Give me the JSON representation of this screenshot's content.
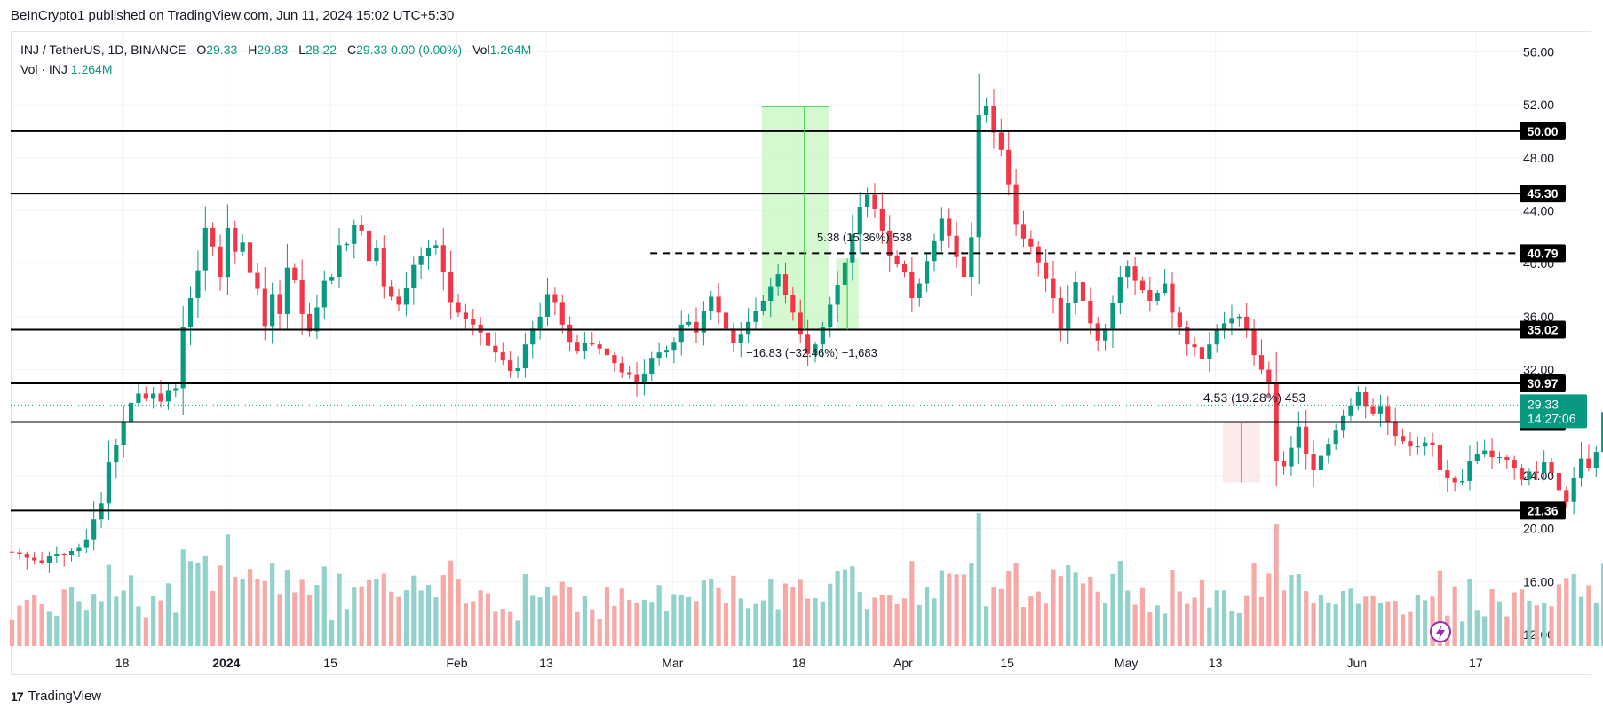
{
  "publisher": "BeInCrypto1 published on TradingView.com, Jun 11, 2024 15:02 UTC+5:30",
  "legend": {
    "symbol": "INJ / TetherUS, 1D, BINANCE",
    "o_label": "O",
    "o": "29.33",
    "h_label": "H",
    "h": "29.83",
    "l_label": "L",
    "l": "28.22",
    "c_label": "C",
    "c": "29.33",
    "change": "0.00 (0.00%)",
    "vol_label": "Vol",
    "vol": "1.264M",
    "vol_line_label": "Vol · INJ",
    "vol_line_value": "1.264M"
  },
  "footer": {
    "brand": "TradingView",
    "logo_glyph": "17"
  },
  "colors": {
    "up": "#089981",
    "down": "#f23645",
    "up_vol": "#92d2cc",
    "down_vol": "#f7a9a7",
    "level": "#000000",
    "grid": "#f0f3fa",
    "measure_box": "#c8f5c0",
    "measure_line": "#3cd34a"
  },
  "chart_data": {
    "type": "candlestick",
    "price_axis": {
      "range": [
        11,
        57.5
      ],
      "ticks": [
        "56.00",
        "52.00",
        "48.00",
        "44.00",
        "40.00",
        "36.00",
        "32.00",
        "28.00",
        "24.00",
        "20.00",
        "16.00",
        "12.00"
      ]
    },
    "time_axis": {
      "start": "2023-12-03",
      "end": "2024-06-23",
      "ticks": [
        {
          "date": "2023-12-18",
          "label": "18"
        },
        {
          "date": "2024-01-01",
          "label": "2024"
        },
        {
          "date": "2024-01-15",
          "label": "15"
        },
        {
          "date": "2024-02-01",
          "label": "Feb"
        },
        {
          "date": "2024-02-13",
          "label": "13"
        },
        {
          "date": "2024-03-01",
          "label": "Mar"
        },
        {
          "date": "2024-03-18",
          "label": "18"
        },
        {
          "date": "2024-04-01",
          "label": "Apr"
        },
        {
          "date": "2024-04-15",
          "label": "15"
        },
        {
          "date": "2024-05-01",
          "label": "May"
        },
        {
          "date": "2024-05-13",
          "label": "13"
        },
        {
          "date": "2024-06-01",
          "label": "Jun"
        },
        {
          "date": "2024-06-17",
          "label": "17"
        }
      ]
    },
    "start_date": "2023-12-03",
    "closes": [
      18.2,
      18.1,
      17.8,
      17.6,
      17.4,
      17.9,
      18.1,
      18.0,
      18.3,
      18.6,
      19.2,
      20.7,
      21.9,
      25.0,
      26.3,
      28.0,
      29.5,
      30.2,
      29.8,
      30.2,
      29.6,
      30.4,
      30.6,
      35.2,
      37.4,
      39.5,
      42.7,
      41.3,
      39.0,
      42.7,
      40.9,
      41.6,
      39.3,
      38.1,
      35.3,
      37.7,
      36.2,
      39.7,
      38.8,
      36.2,
      34.9,
      36.7,
      38.7,
      39.0,
      41.4,
      41.5,
      42.9,
      42.5,
      40.2,
      41.2,
      38.3,
      37.5,
      36.9,
      38.2,
      39.9,
      40.6,
      41.2,
      41.4,
      39.4,
      37.1,
      36.3,
      35.8,
      35.4,
      34.8,
      33.8,
      33.3,
      32.7,
      31.9,
      32.1,
      33.9,
      35.1,
      36.0,
      37.7,
      37.1,
      35.4,
      34.1,
      33.4,
      34.0,
      33.9,
      33.6,
      33.1,
      32.5,
      31.8,
      31.6,
      31.0,
      31.7,
      32.9,
      33.3,
      33.5,
      34.1,
      35.4,
      35.6,
      34.8,
      36.4,
      37.5,
      36.3,
      35.1,
      34.0,
      34.7,
      35.6,
      36.4,
      37.2,
      38.3,
      39.2,
      37.6,
      36.3,
      34.7,
      33.2,
      33.9,
      35.2,
      36.9,
      38.4,
      40.1,
      42.2,
      44.3,
      45.2,
      44.1,
      42.5,
      40.6,
      40.0,
      39.4,
      37.4,
      38.5,
      40.2,
      41.7,
      43.4,
      42.1,
      40.5,
      39.0,
      42.0,
      51.2,
      51.9,
      49.9,
      48.6,
      46.0,
      43.0,
      41.9,
      41.3,
      40.1,
      38.9,
      37.4,
      35.1,
      37.0,
      38.6,
      37.2,
      35.5,
      34.2,
      35.1,
      37.0,
      39.0,
      39.8,
      38.7,
      38.0,
      37.2,
      37.8,
      38.5,
      36.3,
      35.2,
      33.9,
      33.7,
      32.8,
      33.9,
      35.0,
      35.5,
      35.9,
      36.0,
      35.0,
      33.1,
      32.0,
      30.9,
      25.1,
      24.7,
      26.1,
      27.7,
      25.6,
      24.4,
      25.5,
      26.4,
      27.4,
      28.5,
      29.3,
      30.3,
      29.2,
      28.7,
      29.2,
      28.0,
      27.0,
      26.6,
      26.2,
      26.2,
      26.5,
      26.3,
      24.4,
      23.8,
      23.5,
      23.6,
      25.1,
      25.6,
      25.9,
      25.4,
      25.4,
      25.2,
      24.6,
      23.7,
      24.3,
      24.2,
      25.0,
      24.2,
      22.9,
      22.0,
      23.8,
      25.3,
      24.6,
      25.8,
      28.8,
      28.7,
      28.5,
      27.7,
      27.1,
      26.4,
      27.6,
      26.8,
      26.0,
      25.2,
      26.4,
      26.7,
      27.0,
      25.9,
      25.1,
      25.3,
      25.2,
      24.6,
      24.9,
      25.9,
      27.4,
      28.9,
      28.1,
      29.0,
      27.6,
      28.2,
      29.3
    ],
    "volume_axis": {
      "max": 19.0,
      "unit": "M"
    },
    "horizontal_levels": [
      {
        "price": 50.0,
        "label": "50.00",
        "style": "solid"
      },
      {
        "price": 45.3,
        "label": "45.30",
        "style": "solid"
      },
      {
        "price": 40.79,
        "label": "40.79",
        "style": "dashed"
      },
      {
        "price": 35.02,
        "label": "35.02",
        "style": "solid"
      },
      {
        "price": 30.97,
        "label": "30.97",
        "style": "solid"
      },
      {
        "price": 28.05,
        "label": "28.05",
        "style": "solid"
      },
      {
        "price": 21.36,
        "label": "21.36",
        "style": "solid"
      }
    ],
    "current_price": {
      "value": "29.33",
      "countdown": "14:27:06"
    },
    "measurements": [
      {
        "text": "5.38 (15.36%) 538",
        "from": 35.02,
        "to": 40.4,
        "start": "2024-03-23",
        "end": "2024-03-25"
      },
      {
        "text": "−16.83 (−32.46%) −1,683",
        "from": 51.85,
        "to": 35.02,
        "start": "2024-03-13",
        "end": "2024-03-21"
      },
      {
        "text": "4.53 (19.28%) 453",
        "from": 23.5,
        "to": 28.03,
        "start": "2024-05-14",
        "end": "2024-05-18"
      }
    ]
  }
}
